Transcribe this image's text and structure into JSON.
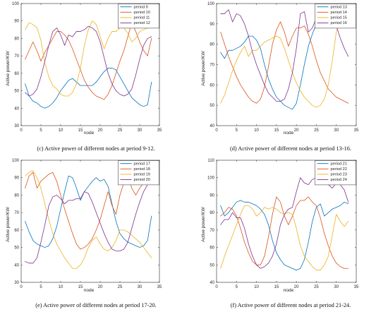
{
  "chart_data": [
    {
      "type": "line",
      "caption": "(c)  Active power of different nodes at period 9-12.",
      "xlabel": "node",
      "ylabel": "Active power/KW",
      "xlim": [
        0,
        35
      ],
      "ylim": [
        30,
        100
      ],
      "xticks": [
        0,
        5,
        10,
        15,
        20,
        25,
        30,
        35
      ],
      "yticks": [
        30,
        40,
        50,
        60,
        70,
        80,
        90,
        100
      ],
      "legend_position": "top-right",
      "x": [
        1,
        2,
        3,
        4,
        5,
        6,
        7,
        8,
        9,
        10,
        11,
        12,
        13,
        14,
        15,
        16,
        17,
        18,
        19,
        20,
        21,
        22,
        23,
        24,
        25,
        26,
        27,
        28,
        29,
        30,
        31,
        32,
        33
      ],
      "series": [
        {
          "name": "period 9",
          "color": "#0072BD",
          "values": [
            54,
            47,
            44,
            43,
            41,
            40,
            41,
            43,
            46,
            50,
            53,
            56,
            57,
            55,
            53,
            53,
            53,
            53,
            55,
            58,
            61,
            63,
            63,
            62,
            58,
            54,
            50,
            46,
            44,
            42,
            41,
            42,
            55
          ]
        },
        {
          "name": "period 10",
          "color": "#D95319",
          "values": [
            68,
            73,
            78,
            73,
            67,
            72,
            76,
            80,
            84,
            84,
            82,
            79,
            74,
            68,
            62,
            56,
            52,
            49,
            47,
            46,
            45,
            48,
            53,
            60,
            67,
            73,
            81,
            89,
            84,
            78,
            73,
            70,
            80
          ]
        },
        {
          "name": "period 11",
          "color": "#EDB120",
          "values": [
            85,
            89,
            88,
            86,
            79,
            66,
            58,
            53,
            51,
            48,
            47,
            47,
            49,
            54,
            63,
            76,
            85,
            90,
            88,
            81,
            74,
            80,
            84,
            84,
            86,
            86,
            83,
            78,
            80,
            84,
            85,
            86,
            88
          ]
        },
        {
          "name": "period 12",
          "color": "#7E2F8E",
          "values": [
            49,
            47,
            48,
            51,
            58,
            67,
            76,
            84,
            86,
            82,
            76,
            82,
            81,
            84,
            84,
            85,
            87,
            86,
            84,
            78,
            69,
            60,
            54,
            50,
            48,
            47,
            48,
            51,
            59,
            68,
            76,
            80,
            81
          ]
        }
      ]
    },
    {
      "type": "line",
      "caption": "(d)  Active power of different nodes at period 13-16.",
      "xlabel": "node",
      "ylabel": "Active power/KW",
      "xlim": [
        0,
        35
      ],
      "ylim": [
        40,
        100
      ],
      "xticks": [
        0,
        5,
        10,
        15,
        20,
        25,
        30,
        35
      ],
      "yticks": [
        40,
        50,
        60,
        70,
        80,
        90,
        100
      ],
      "legend_position": "top-right",
      "x": [
        1,
        2,
        3,
        4,
        5,
        6,
        7,
        8,
        9,
        10,
        11,
        12,
        13,
        14,
        15,
        16,
        17,
        18,
        19,
        20,
        21,
        22,
        23,
        24,
        25,
        26,
        27,
        28,
        29,
        30,
        31,
        32,
        33
      ],
      "series": [
        {
          "name": "period 13",
          "color": "#0072BD",
          "values": [
            76,
            73,
            77,
            77,
            78,
            79,
            81,
            84,
            84,
            82,
            78,
            70,
            63,
            58,
            54,
            52,
            50,
            49,
            48,
            51,
            60,
            70,
            79,
            85,
            90,
            88,
            89,
            90,
            90,
            93,
            90,
            92,
            93
          ]
        },
        {
          "name": "period 14",
          "color": "#D95319",
          "values": [
            86,
            80,
            74,
            69,
            64,
            60,
            57,
            54,
            52,
            51,
            53,
            59,
            69,
            80,
            87,
            91,
            86,
            79,
            84,
            88,
            88,
            89,
            85,
            79,
            72,
            66,
            62,
            58,
            56,
            54,
            53,
            52,
            51
          ]
        },
        {
          "name": "period 15",
          "color": "#EDB120",
          "values": [
            51,
            55,
            61,
            67,
            72,
            76,
            79,
            74,
            77,
            77,
            79,
            81,
            82,
            83,
            84,
            83,
            78,
            72,
            66,
            61,
            57,
            54,
            52,
            50,
            49,
            50,
            53,
            60,
            72,
            86,
            92,
            91,
            88
          ]
        },
        {
          "name": "period 16",
          "color": "#7E2F8E",
          "values": [
            95,
            95,
            97,
            91,
            95,
            94,
            90,
            84,
            76,
            70,
            65,
            60,
            56,
            54,
            52,
            52,
            53,
            58,
            66,
            78,
            95,
            96,
            86,
            88,
            93,
            91,
            92,
            93,
            92,
            89,
            83,
            78,
            74
          ]
        }
      ]
    },
    {
      "type": "line",
      "caption": "(e)  Active power of different nodes at period 17-20.",
      "xlabel": "node",
      "ylabel": "Active power/KW",
      "xlim": [
        0,
        35
      ],
      "ylim": [
        30,
        100
      ],
      "xticks": [
        0,
        5,
        10,
        15,
        20,
        25,
        30,
        35
      ],
      "yticks": [
        30,
        40,
        50,
        60,
        70,
        80,
        90,
        100
      ],
      "legend_position": "top-right",
      "x": [
        1,
        2,
        3,
        4,
        5,
        6,
        7,
        8,
        9,
        10,
        11,
        12,
        13,
        14,
        15,
        16,
        17,
        18,
        19,
        20,
        21,
        22,
        23,
        24,
        25,
        26,
        27,
        28,
        29,
        30,
        31,
        32,
        33
      ],
      "series": [
        {
          "name": "period 17",
          "color": "#0072BD",
          "values": [
            65,
            59,
            54,
            52,
            51,
            50,
            51,
            55,
            62,
            72,
            82,
            91,
            90,
            84,
            77,
            82,
            85,
            88,
            90,
            88,
            89,
            85,
            75,
            65,
            58,
            55,
            53,
            52,
            51,
            50,
            51,
            54,
            68
          ]
        },
        {
          "name": "period 18",
          "color": "#D95319",
          "values": [
            84,
            91,
            93,
            84,
            88,
            90,
            92,
            93,
            88,
            80,
            72,
            65,
            58,
            52,
            49,
            50,
            52,
            55,
            60,
            66,
            74,
            82,
            74,
            69,
            80,
            87,
            91,
            84,
            80,
            84,
            87,
            91,
            91
          ]
        },
        {
          "name": "period 19",
          "color": "#EDB120",
          "values": [
            91,
            93,
            94,
            90,
            84,
            75,
            66,
            58,
            52,
            48,
            44,
            41,
            38,
            38,
            40,
            44,
            50,
            54,
            56,
            52,
            49,
            48,
            50,
            54,
            60,
            60,
            59,
            57,
            55,
            53,
            50,
            47,
            44
          ]
        },
        {
          "name": "period 20",
          "color": "#7E2F8E",
          "values": [
            42,
            41,
            41,
            44,
            53,
            63,
            74,
            79,
            80,
            78,
            75,
            77,
            77,
            78,
            78,
            82,
            81,
            76,
            70,
            64,
            58,
            53,
            49,
            48,
            48,
            49,
            53,
            61,
            69,
            76,
            82,
            86,
            88
          ]
        }
      ]
    },
    {
      "type": "line",
      "caption": "(f)  Active power of different nodes at period 21-24.",
      "xlabel": "node",
      "ylabel": "Active power/KW",
      "xlim": [
        0,
        35
      ],
      "ylim": [
        40,
        110
      ],
      "xticks": [
        0,
        5,
        10,
        15,
        20,
        25,
        30,
        35
      ],
      "yticks": [
        40,
        50,
        60,
        70,
        80,
        90,
        100,
        110
      ],
      "legend_position": "top-right",
      "x": [
        1,
        2,
        3,
        4,
        5,
        6,
        7,
        8,
        9,
        10,
        11,
        12,
        13,
        14,
        15,
        16,
        17,
        18,
        19,
        20,
        21,
        22,
        23,
        24,
        25,
        26,
        27,
        28,
        29,
        30,
        31,
        32,
        33
      ],
      "series": [
        {
          "name": "period 21",
          "color": "#0072BD",
          "values": [
            84,
            78,
            80,
            83,
            86,
            87,
            86,
            86,
            85,
            84,
            82,
            79,
            73,
            64,
            57,
            53,
            50,
            49,
            48,
            47,
            48,
            53,
            63,
            75,
            83,
            85,
            78,
            80,
            82,
            83,
            84,
            86,
            85
          ]
        },
        {
          "name": "period 22",
          "color": "#D95319",
          "values": [
            78,
            80,
            83,
            82,
            78,
            71,
            63,
            57,
            52,
            50,
            50,
            55,
            66,
            79,
            89,
            86,
            78,
            73,
            78,
            84,
            87,
            87,
            89,
            86,
            84,
            77,
            68,
            61,
            55,
            51,
            49,
            48,
            48
          ]
        },
        {
          "name": "period 23",
          "color": "#EDB120",
          "values": [
            48,
            55,
            61,
            67,
            73,
            79,
            84,
            84,
            82,
            78,
            80,
            83,
            82,
            83,
            82,
            80,
            79,
            80,
            79,
            71,
            61,
            55,
            52,
            49,
            47,
            47,
            50,
            55,
            67,
            79,
            75,
            72,
            75
          ]
        },
        {
          "name": "period 24",
          "color": "#7E2F8E",
          "values": [
            73,
            76,
            76,
            80,
            77,
            77,
            71,
            62,
            55,
            50,
            48,
            49,
            51,
            55,
            62,
            73,
            79,
            82,
            83,
            92,
            100,
            97,
            96,
            99,
            100,
            101,
            100,
            96,
            94,
            97,
            96,
            93,
            86
          ]
        }
      ]
    }
  ]
}
